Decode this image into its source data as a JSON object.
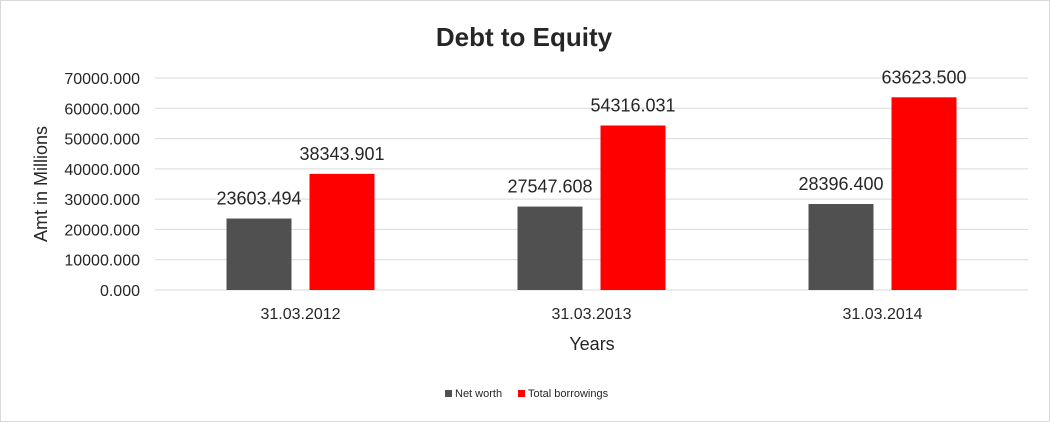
{
  "chart_data": {
    "type": "bar",
    "title": "Debt to Equity",
    "xlabel": "Years",
    "ylabel": "Amt in Millions",
    "categories": [
      "31.03.2012",
      "31.03.2013",
      "31.03.2014"
    ],
    "series": [
      {
        "name": "Net worth",
        "color": "#505050",
        "values": [
          23603.494,
          27547.608,
          28396.4
        ],
        "labels": [
          "23603.494",
          "27547.608",
          "28396.400"
        ]
      },
      {
        "name": "Total borrowings",
        "color": "#ff0000",
        "values": [
          38343.901,
          54316.031,
          63623.5
        ],
        "labels": [
          "38343.901",
          "54316.031",
          "63623.500"
        ]
      }
    ],
    "ylim": [
      0,
      70000
    ],
    "yticks": [
      0,
      10000,
      20000,
      30000,
      40000,
      50000,
      60000,
      70000
    ],
    "ytick_labels": [
      "0.000",
      "10000.000",
      "20000.000",
      "30000.000",
      "40000.000",
      "50000.000",
      "60000.000",
      "70000.000"
    ],
    "grid": true,
    "gridline_color": "#d9d9d9",
    "legend_position": "bottom"
  }
}
